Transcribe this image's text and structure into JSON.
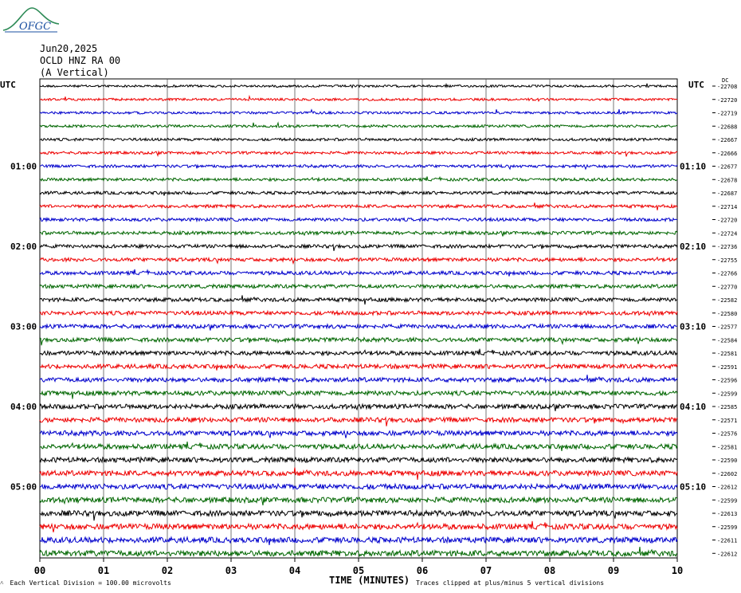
{
  "logo": {
    "text": "OFGC",
    "color": "#1a4fa0",
    "accent": "#2e8b57"
  },
  "header": {
    "date": "Jun20,2025",
    "station": "OCLD HNZ RA 00",
    "component": "(A Vertical)"
  },
  "left_axis_title": "UTC",
  "right_axis_title": "UTC",
  "right_unit": "DC",
  "footer": {
    "scale_note": "Each Vertical Division =  100.00 microvolts",
    "clip_note": "Traces clipped at plus/minus 5 vertical divisions"
  },
  "chart_data": {
    "type": "line",
    "title": "",
    "xlabel": "TIME (MINUTES)",
    "xlim": [
      0,
      10
    ],
    "x_ticks": [
      "00",
      "01",
      "02",
      "03",
      "04",
      "05",
      "06",
      "07",
      "08",
      "09",
      "10"
    ],
    "grid_x": true,
    "trace_colors": [
      "#000000",
      "#ee0000",
      "#0000cc",
      "#006600"
    ],
    "left_time_labels": [
      "01:00",
      "02:00",
      "03:00",
      "04:00",
      "05:00"
    ],
    "left_time_rows": [
      6,
      12,
      18,
      24,
      30
    ],
    "right_time_labels": [
      "01:10",
      "02:10",
      "03:10",
      "04:10",
      "05:10"
    ],
    "right_time_rows": [
      6,
      12,
      18,
      24,
      30
    ],
    "dc_offsets": [
      "-22708",
      "-22720",
      "-22719",
      "-22688",
      "-22667",
      "-22666",
      "-22677",
      "-22678",
      "-22687",
      "-22714",
      "-22720",
      "-22724",
      "-22736",
      "-22755",
      "-22766",
      "-22770",
      "-22582",
      "-22580",
      "-22577",
      "-22584",
      "-22581",
      "-22591",
      "-22596",
      "-22599",
      "-22585",
      "-22571",
      "-22576",
      "-22581",
      "-22590",
      "-22602",
      "-22612",
      "-22599",
      "-22613",
      "-22599",
      "-22611",
      "-22612"
    ]
  }
}
